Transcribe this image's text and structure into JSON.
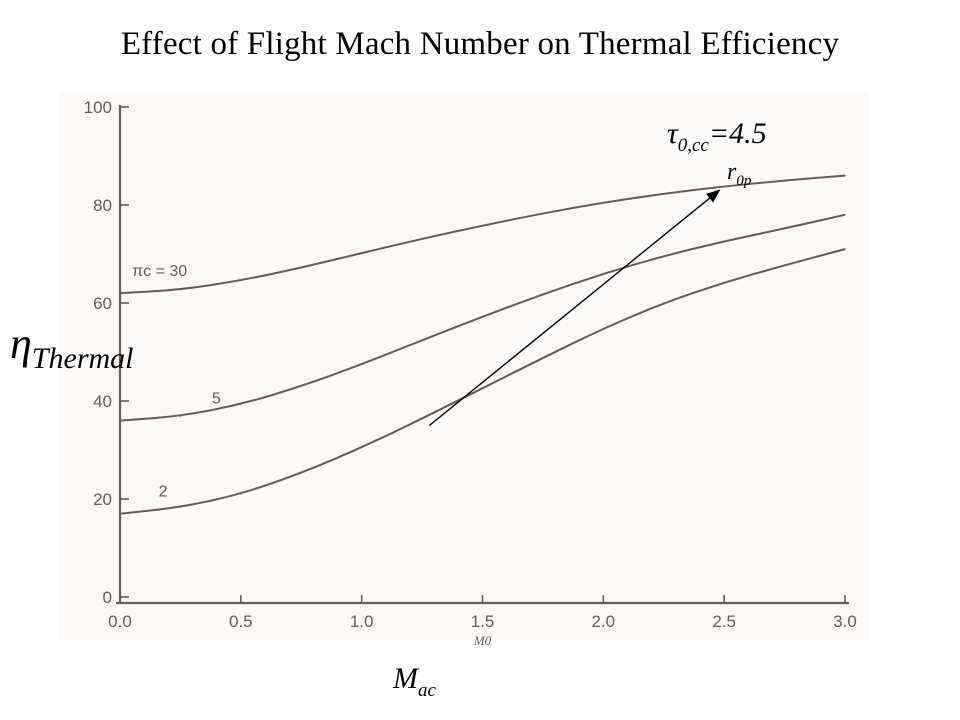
{
  "slide": {
    "title": "Effect of Flight Mach Number on Thermal Efficiency",
    "eta_symbol": "η",
    "eta_subscript": "Thermal",
    "tau_symbol": "τ",
    "tau_subscript": "0,cc",
    "tau_value": "=4.5",
    "r_symbol": "r",
    "r_subscript": "0p",
    "mach_symbol": "M",
    "mach_subscript": "ac"
  },
  "chart_data": {
    "type": "line",
    "xlabel": "M0",
    "ylabel": "",
    "xlim": [
      0.0,
      3.0
    ],
    "ylim": [
      0,
      100
    ],
    "x_ticks": [
      "0.0",
      "0.5",
      "1.0",
      "1.5",
      "2.0",
      "2.5",
      "3.0"
    ],
    "y_ticks": [
      "0",
      "20",
      "40",
      "60",
      "80",
      "100"
    ],
    "x": [
      0.0,
      0.25,
      0.5,
      0.75,
      1.0,
      1.25,
      1.5,
      1.75,
      2.0,
      2.25,
      2.5,
      2.75,
      3.0
    ],
    "series": [
      {
        "name": "πc = 30",
        "values": [
          62,
          62.7,
          64.6,
          67.2,
          70.2,
          73.1,
          75.8,
          78.3,
          80.5,
          82.3,
          83.8,
          85.0,
          86
        ]
      },
      {
        "name": "5",
        "values": [
          36,
          36.9,
          39.3,
          43.0,
          47.5,
          52.4,
          57.2,
          61.8,
          66.0,
          69.6,
          72.6,
          75.2,
          78
        ]
      },
      {
        "name": "2",
        "values": [
          17,
          18.3,
          21.0,
          25.3,
          30.5,
          36.4,
          42.6,
          48.8,
          54.8,
          60.0,
          64.2,
          67.7,
          71
        ]
      }
    ],
    "annotations": [
      {
        "text": "πc = 30",
        "x": 0.05,
        "y": 65.5
      },
      {
        "text": "5",
        "x": 0.38,
        "y": 39.5
      },
      {
        "text": "2",
        "x": 0.16,
        "y": 20.5
      }
    ],
    "arrow": {
      "from": [
        1.28,
        35
      ],
      "to": [
        2.48,
        83
      ]
    },
    "grid": false,
    "legend": "none"
  }
}
